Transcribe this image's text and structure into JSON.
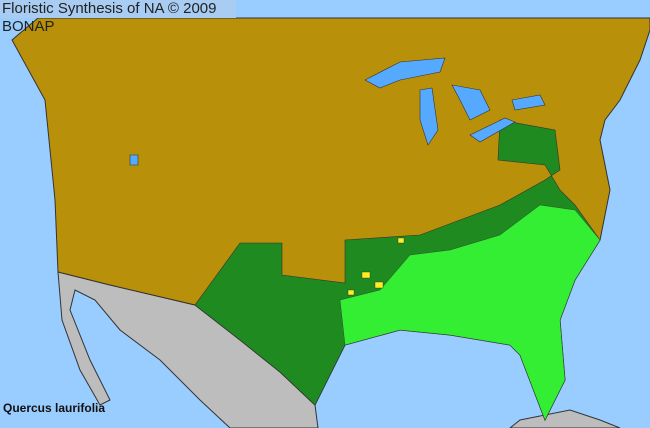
{
  "header": {
    "title": "Floristic Synthesis of NA © 2009 BONAP"
  },
  "map": {
    "species": "Quercus laurifolia",
    "colors": {
      "ocean": "#99ccff",
      "land_absent": "#b8900a",
      "present_state": "#1f8a1f",
      "present_county": "#33ee33",
      "noted_county": "#ffee22",
      "outside_region": "#bdbdbd",
      "lakes": "#55aaff",
      "borders": "#333333"
    }
  }
}
